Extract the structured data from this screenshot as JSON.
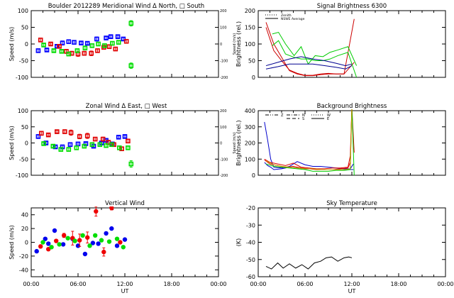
{
  "chart_data": [
    {
      "id": "meridional",
      "type": "scatter",
      "title": "Boulder   2012289     Meridional Wind",
      "legend_text": "Δ North, □ South",
      "xlabel": "",
      "ylabel": "Speed (m/s)",
      "ylim": [
        -100,
        100
      ],
      "yticks": [
        -100,
        -50,
        0,
        50,
        100
      ],
      "y2label": "Speed (m/s)",
      "y2lim": [
        -200,
        200
      ],
      "y2ticks": [
        -200,
        -100,
        0,
        100,
        200
      ],
      "xlim": [
        0,
        24
      ],
      "series": [
        {
          "name": "blue",
          "color": "#0000ff",
          "x": [
            0.9,
            2.0,
            3.3,
            4.0,
            4.8,
            5.5,
            6.4,
            7.2,
            8.4,
            9.6,
            10.2,
            11.1,
            11.8
          ],
          "y": [
            -20,
            -18,
            -7,
            3,
            7,
            5,
            3,
            2,
            15,
            18,
            22,
            22,
            15
          ],
          "err": [
            5,
            4,
            4,
            6,
            5,
            5,
            4,
            4,
            6,
            4,
            4,
            4,
            4
          ]
        },
        {
          "name": "red",
          "color": "#e00000",
          "x": [
            1.2,
            2.5,
            3.6,
            4.5,
            5.2,
            6.0,
            6.8,
            7.7,
            8.5,
            9.3,
            10.0,
            10.8,
            12.2
          ],
          "y": [
            12,
            0,
            -7,
            -22,
            -28,
            -30,
            -28,
            -28,
            -20,
            -10,
            -8,
            -15,
            8
          ],
          "err": [
            5,
            4,
            4,
            6,
            6,
            7,
            6,
            7,
            5,
            5,
            5,
            5,
            5
          ]
        },
        {
          "name": "green",
          "color": "#00dd00",
          "x": [
            1.6,
            2.9,
            3.9,
            4.8,
            5.9,
            6.9,
            7.8,
            8.6,
            9.4,
            10.4,
            11.2,
            12.8,
            12.8
          ],
          "y": [
            -3,
            -20,
            -22,
            -30,
            -20,
            -12,
            -5,
            0,
            -5,
            2,
            5,
            62,
            -65
          ],
          "err": [
            4,
            4,
            4,
            5,
            5,
            5,
            5,
            5,
            5,
            5,
            5,
            8,
            8
          ]
        }
      ]
    },
    {
      "id": "signal",
      "type": "line",
      "title": "Signal Brightness      6300",
      "xlabel": "",
      "ylabel": "Brightness (rel.)",
      "ylim": [
        0,
        200
      ],
      "yticks": [
        0,
        50,
        100,
        150,
        200
      ],
      "xlim": [
        0,
        24
      ],
      "legend": [
        {
          "style": "dotted",
          "label": "Zenith"
        },
        {
          "style": "solid",
          "label": "NSWE Average"
        }
      ],
      "series": [
        {
          "name": "red-1",
          "color": "#cc0000",
          "x": [
            1.0,
            2.0,
            3.0,
            4.0,
            5.0,
            6.0,
            7.0,
            8.0,
            9.0,
            10.0,
            11.0,
            12.3
          ],
          "y": [
            165,
            100,
            60,
            20,
            10,
            5,
            5,
            8,
            10,
            10,
            10,
            175
          ]
        },
        {
          "name": "red-2",
          "color": "#cc0000",
          "x": [
            1.0,
            2.0,
            3.0,
            4.0,
            5.0,
            6.0,
            7.0,
            8.0,
            9.0,
            10.0,
            11.0,
            12.3
          ],
          "y": [
            150,
            80,
            50,
            22,
            12,
            6,
            6,
            10,
            12,
            10,
            10,
            45
          ]
        },
        {
          "name": "green-1",
          "color": "#00cc00",
          "x": [
            1.8,
            2.6,
            3.5,
            4.6,
            5.5,
            6.4,
            7.3,
            8.3,
            9.2,
            10.2,
            11.5,
            12.6
          ],
          "y": [
            130,
            135,
            100,
            65,
            92,
            40,
            65,
            62,
            75,
            82,
            92,
            35
          ]
        },
        {
          "name": "green-2",
          "color": "#00cc00",
          "x": [
            1.8,
            2.6,
            3.5,
            4.6,
            5.5,
            6.4,
            7.3,
            8.3,
            9.2,
            10.2,
            11.5,
            12.6
          ],
          "y": [
            95,
            110,
            70,
            60,
            55,
            55,
            50,
            50,
            55,
            65,
            75,
            0
          ]
        },
        {
          "name": "blue-1",
          "color": "#000090",
          "x": [
            1.0,
            2.5,
            4.0,
            5.5,
            7.0,
            8.5,
            10.0,
            11.2,
            12.0
          ],
          "y": [
            35,
            45,
            55,
            62,
            55,
            50,
            42,
            35,
            40
          ]
        },
        {
          "name": "blue-2",
          "color": "#000090",
          "x": [
            1.0,
            2.5,
            4.0,
            5.5,
            7.0,
            8.5,
            10.0,
            11.2,
            12.0
          ],
          "y": [
            25,
            32,
            40,
            40,
            40,
            35,
            30,
            25,
            35
          ]
        }
      ]
    },
    {
      "id": "zonal",
      "type": "scatter",
      "title": "Zonal Wind",
      "legend_text": "Δ East, □ West",
      "xlabel": "",
      "ylabel": "Speed (m/s)",
      "ylim": [
        -100,
        100
      ],
      "yticks": [
        -100,
        -50,
        0,
        50,
        100
      ],
      "y2label": "Speed (m/s)",
      "y2lim": [
        -200,
        200
      ],
      "y2ticks": [
        -200,
        -100,
        0,
        100,
        200
      ],
      "xlim": [
        0,
        24
      ],
      "series": [
        {
          "name": "blue",
          "color": "#0000ff",
          "x": [
            0.9,
            1.9,
            3.1,
            4.0,
            5.0,
            6.0,
            7.0,
            8.0,
            9.0,
            9.6,
            10.4,
            11.2,
            12.0
          ],
          "y": [
            20,
            0,
            -12,
            -12,
            -5,
            -3,
            -2,
            -10,
            0,
            8,
            -3,
            18,
            20
          ],
          "err": [
            6,
            4,
            4,
            5,
            5,
            5,
            4,
            4,
            4,
            4,
            4,
            4,
            4
          ]
        },
        {
          "name": "red",
          "color": "#e00000",
          "x": [
            1.3,
            2.2,
            3.3,
            4.3,
            5.1,
            6.2,
            7.2,
            8.2,
            9.2,
            9.9,
            10.6,
            11.6,
            12.4
          ],
          "y": [
            30,
            25,
            35,
            35,
            32,
            20,
            22,
            12,
            12,
            2,
            -5,
            -18,
            6
          ],
          "err": [
            6,
            4,
            4,
            6,
            8,
            7,
            8,
            5,
            6,
            6,
            5,
            6,
            5
          ]
        },
        {
          "name": "green",
          "color": "#00dd00",
          "x": [
            1.6,
            2.8,
            3.8,
            4.8,
            5.8,
            6.8,
            7.8,
            8.8,
            9.6,
            10.3,
            11.3,
            12.4,
            12.8
          ],
          "y": [
            -2,
            -10,
            -20,
            -20,
            -15,
            -10,
            -5,
            -5,
            -8,
            -5,
            -15,
            -15,
            -65
          ],
          "err": [
            4,
            4,
            5,
            5,
            5,
            5,
            5,
            5,
            5,
            5,
            5,
            5,
            10
          ]
        }
      ]
    },
    {
      "id": "background",
      "type": "line",
      "title": "Background Brightness",
      "xlabel": "",
      "ylabel": "Brightness (rel.)",
      "ylim": [
        0,
        400
      ],
      "yticks": [
        0,
        100,
        200,
        300,
        400
      ],
      "xlim": [
        0,
        24
      ],
      "legend": [
        {
          "style": "dash-dot-dot",
          "label": "Z"
        },
        {
          "style": "dash-dot",
          "label": "N"
        },
        {
          "style": "dashed",
          "label": "S"
        },
        {
          "style": "dotted",
          "label": "W"
        },
        {
          "style": "solid",
          "label": "E"
        }
      ],
      "series": [
        {
          "name": "blue-1",
          "color": "#0000cc",
          "x": [
            0.8,
            1.2,
            1.6,
            2.0,
            3.0,
            4.0,
            5.0,
            6.0,
            7.0,
            8.0,
            9.0,
            10.0,
            11.0,
            11.8,
            12.2
          ],
          "y": [
            330,
            220,
            100,
            50,
            45,
            55,
            85,
            65,
            55,
            55,
            50,
            45,
            40,
            40,
            70
          ]
        },
        {
          "name": "blue-2",
          "color": "#0000cc",
          "x": [
            0.8,
            1.2,
            1.6,
            2.0,
            3.0,
            4.0,
            5.0,
            6.0,
            7.0,
            8.0,
            9.0,
            10.0,
            11.0,
            11.8,
            12.2
          ],
          "y": [
            80,
            60,
            50,
            35,
            40,
            50,
            45,
            40,
            40,
            35,
            35,
            35,
            35,
            35,
            35
          ]
        },
        {
          "name": "red-1",
          "color": "#dd0000",
          "x": [
            0.8,
            1.5,
            2.5,
            3.5,
            4.5,
            5.5,
            6.5,
            7.5,
            8.5,
            9.5,
            10.5,
            11.5,
            11.8,
            12.0,
            12.3
          ],
          "y": [
            100,
            80,
            70,
            60,
            75,
            50,
            45,
            40,
            40,
            45,
            45,
            50,
            120,
            420,
            140
          ]
        },
        {
          "name": "red-2",
          "color": "#dd0000",
          "x": [
            0.8,
            1.5,
            2.5,
            3.5,
            4.5,
            5.5,
            6.5,
            7.5,
            8.5,
            9.5,
            10.5,
            11.5,
            11.8,
            12.0
          ],
          "y": [
            95,
            70,
            60,
            50,
            55,
            45,
            40,
            35,
            35,
            35,
            40,
            45,
            80,
            420
          ]
        },
        {
          "name": "green-1",
          "color": "#00cc00",
          "x": [
            1.0,
            2.0,
            3.0,
            4.0,
            5.0,
            6.0,
            7.0,
            8.0,
            9.0,
            10.0,
            11.0,
            11.8,
            12.0,
            12.3
          ],
          "y": [
            70,
            55,
            50,
            45,
            40,
            35,
            25,
            25,
            25,
            30,
            30,
            35,
            420,
            0
          ]
        },
        {
          "name": "orange-1",
          "color": "#c8a000",
          "x": [
            1.0,
            2.0,
            3.0,
            4.0,
            5.0,
            6.0,
            7.0,
            8.0,
            9.0,
            10.0,
            11.0,
            11.8,
            12.0
          ],
          "y": [
            90,
            65,
            55,
            50,
            45,
            40,
            40,
            35,
            35,
            35,
            35,
            40,
            420
          ]
        }
      ]
    },
    {
      "id": "vertical",
      "type": "scatter",
      "title": "Vertical Wind",
      "xlabel": "UT",
      "ylabel": "Speed (m/s)",
      "ylim": [
        -50,
        50
      ],
      "yticks": [
        -40,
        -20,
        0,
        20,
        40
      ],
      "xlim": [
        0,
        24
      ],
      "xticks": [
        "00:00",
        "06:00",
        "12:00",
        "18:00",
        "00:00"
      ],
      "series": [
        {
          "name": "blue",
          "color": "#0000ee",
          "x": [
            0.7,
            1.8,
            2.2,
            3.0,
            4.1,
            5.3,
            6.0,
            6.9,
            7.9,
            8.6,
            9.6,
            10.3,
            11.0,
            12.0
          ],
          "y": [
            -13,
            5,
            -2,
            17,
            -3,
            5,
            -5,
            -17,
            -1,
            -2,
            13,
            20,
            -5,
            4
          ],
          "err": [
            0,
            0,
            0,
            0,
            0,
            0,
            0,
            0,
            0,
            0,
            0,
            0,
            0,
            0
          ]
        },
        {
          "name": "red",
          "color": "#ee0000",
          "x": [
            1.2,
            2.2,
            3.2,
            4.2,
            5.3,
            6.2,
            7.2,
            8.3,
            9.3,
            10.3,
            11.4
          ],
          "y": [
            -6,
            -10,
            2,
            10,
            6,
            3,
            7,
            45,
            -14,
            50,
            0
          ],
          "err": [
            0,
            0,
            0,
            3,
            10,
            9,
            8,
            7,
            6,
            3,
            0
          ]
        },
        {
          "name": "green",
          "color": "#00dd00",
          "x": [
            1.5,
            2.6,
            3.6,
            4.7,
            5.6,
            6.6,
            7.5,
            8.2,
            9.0,
            10.0,
            11.0,
            11.8
          ],
          "y": [
            0,
            -7,
            -3,
            6,
            2,
            10,
            -5,
            10,
            3,
            1,
            5,
            -7
          ],
          "err": [
            0,
            0,
            0,
            0,
            0,
            0,
            0,
            0,
            0,
            0,
            0,
            0
          ]
        }
      ]
    },
    {
      "id": "skytemp",
      "type": "line",
      "title": "Sky Temperature",
      "xlabel": "UT",
      "ylabel": "(K)",
      "ylim": [
        -60,
        -20
      ],
      "yticks": [
        -60,
        -50,
        -40,
        -30,
        -20
      ],
      "xlim": [
        0,
        24
      ],
      "xticks": [
        "00:00",
        "06:00",
        "12:00",
        "18:00",
        "00:00"
      ],
      "series": [
        {
          "name": "sky",
          "color": "#000000",
          "x": [
            1.0,
            1.7,
            2.5,
            3.2,
            4.0,
            4.8,
            5.6,
            6.4,
            7.2,
            8.0,
            8.7,
            9.4,
            10.2,
            11.0,
            11.6,
            12.0
          ],
          "y": [
            -54,
            -55.5,
            -52,
            -55,
            -52.5,
            -55,
            -53,
            -55.5,
            -52,
            -51,
            -49,
            -48.5,
            -51,
            -49,
            -48.5,
            -49
          ]
        }
      ]
    }
  ]
}
